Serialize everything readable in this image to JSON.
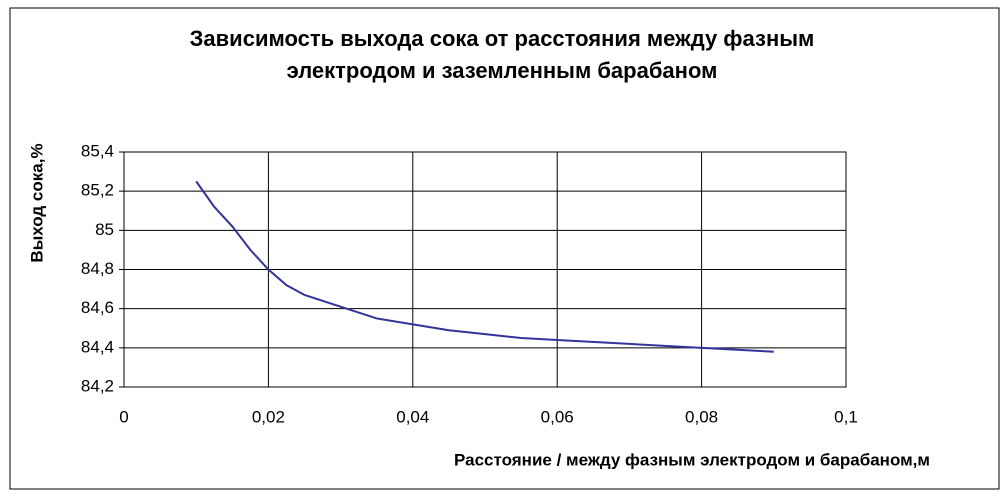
{
  "chart_data": {
    "type": "line",
    "title": [
      "Зависимость выхода сока от расстояния между фазным",
      "электродом и заземленным барабаном"
    ],
    "x_label": "Расстояние /  между фазным электродом и барабаном,м",
    "y_label": "Выход  сока,%",
    "x": [
      0.01,
      0.0125,
      0.015,
      0.0175,
      0.02,
      0.0225,
      0.025,
      0.03,
      0.035,
      0.04,
      0.045,
      0.05,
      0.055,
      0.06,
      0.07,
      0.08,
      0.09
    ],
    "series": [
      {
        "name": "Выход сока",
        "color": "#333399",
        "values": [
          85.25,
          85.12,
          85.02,
          84.9,
          84.8,
          84.72,
          84.67,
          84.61,
          84.55,
          84.52,
          84.49,
          84.47,
          84.45,
          84.44,
          84.42,
          84.4,
          84.38
        ]
      }
    ],
    "xlim": [
      0,
      0.1
    ],
    "xticks": [
      0,
      {
        "value": 0.02,
        "label": "0,02"
      },
      {
        "value": 0.04,
        "label": "0,04"
      },
      {
        "value": 0.06,
        "label": "0,06"
      },
      {
        "value": 0.08,
        "label": "0,08"
      },
      {
        "value": 0.1,
        "label": "0,1"
      }
    ],
    "ylim": [
      84.2,
      85.4
    ],
    "yticks": [
      {
        "value": 84.2,
        "label": "84,2"
      },
      {
        "value": 84.4,
        "label": "84,4"
      },
      {
        "value": 84.6,
        "label": "84,6"
      },
      {
        "value": 84.8,
        "label": "84,8"
      },
      85,
      {
        "value": 85.2,
        "label": "85,2"
      },
      {
        "value": 85.4,
        "label": "85,4"
      }
    ],
    "grid": true
  }
}
